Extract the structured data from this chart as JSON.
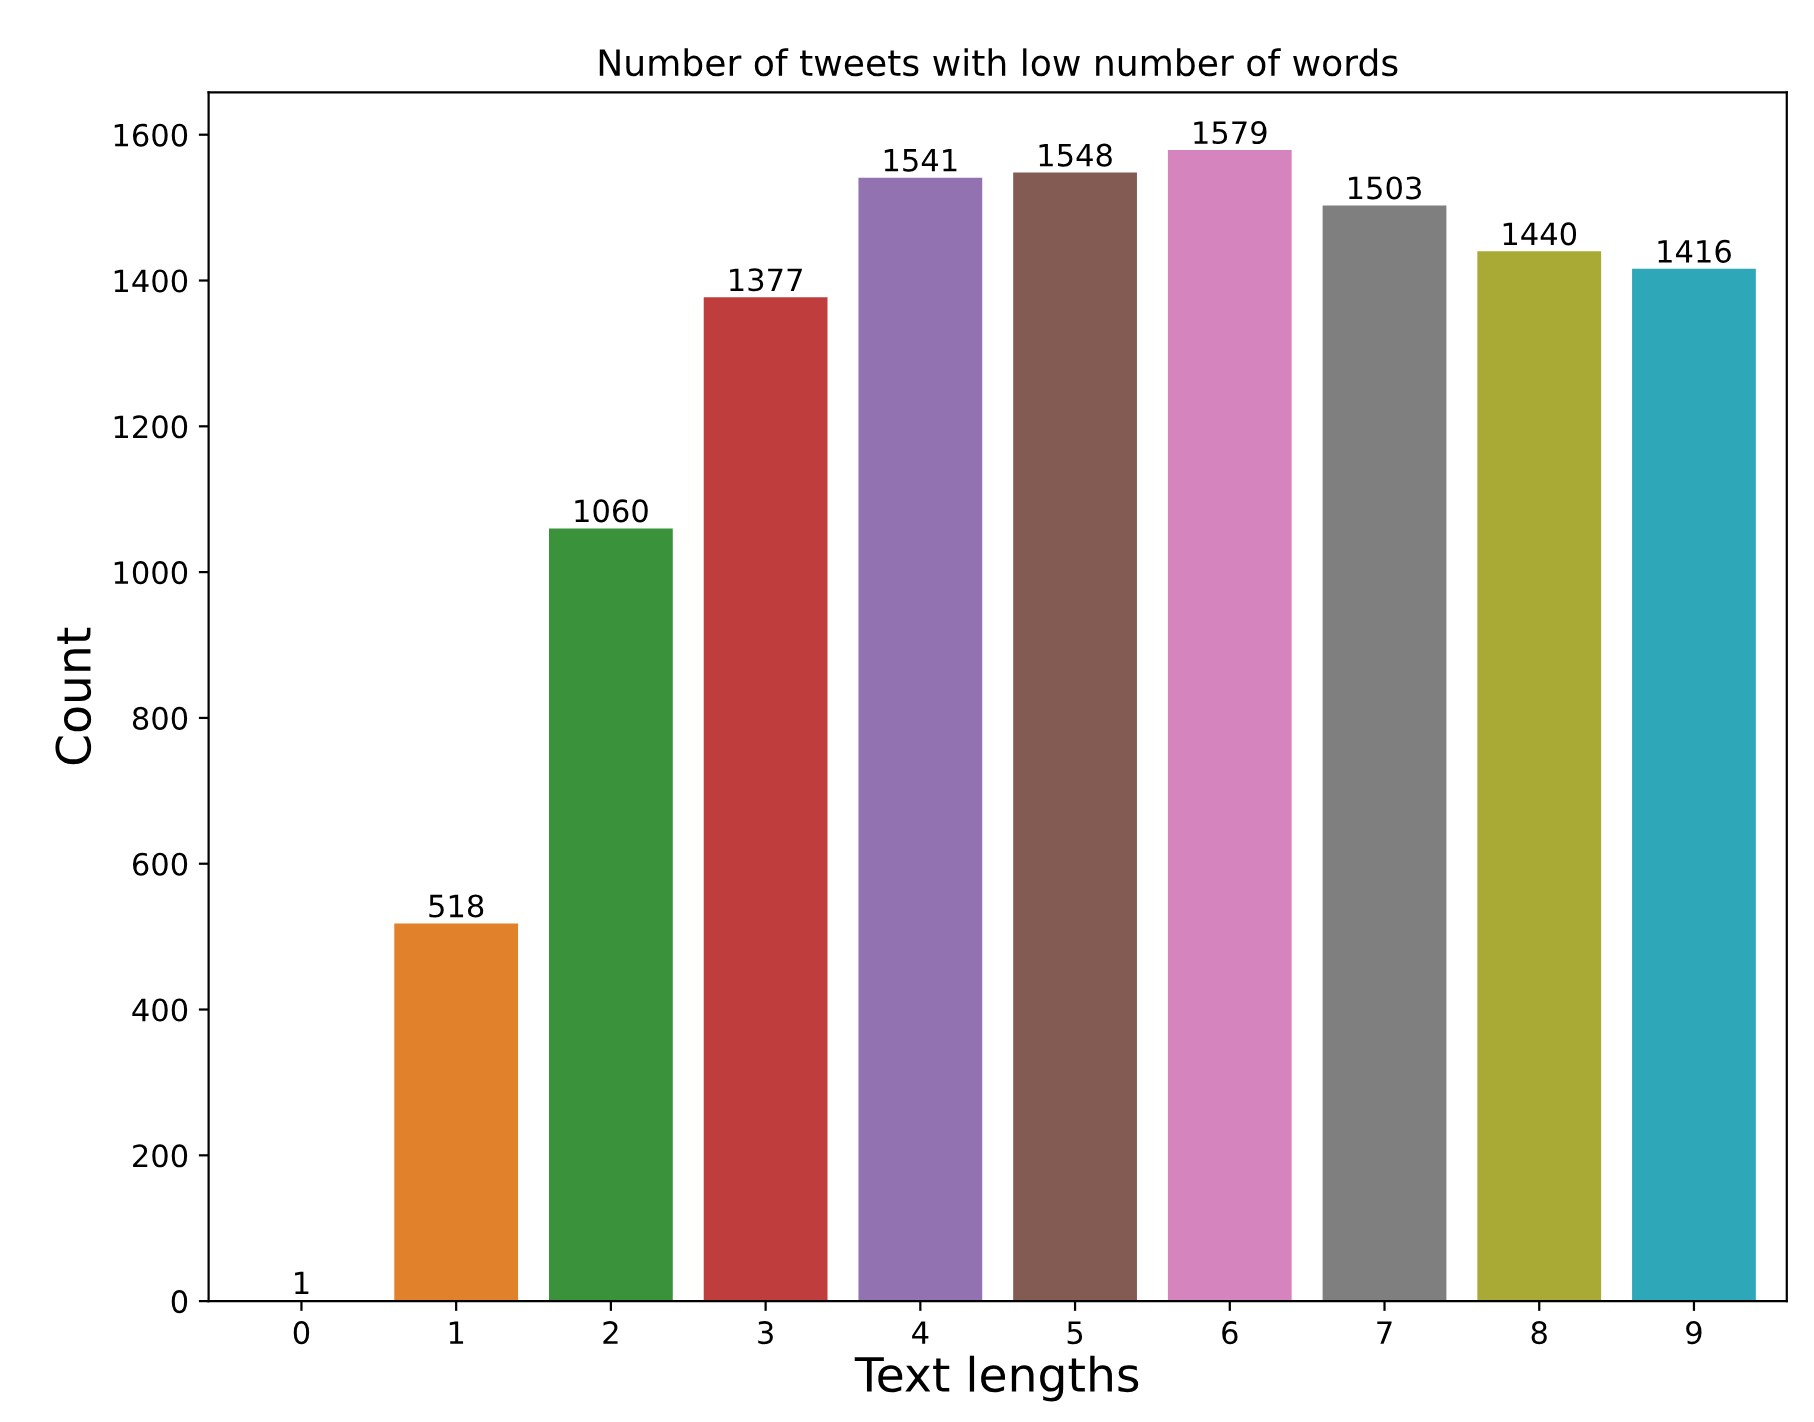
{
  "chart_data": {
    "type": "bar",
    "title": "Number of tweets with low number of words",
    "xlabel": "Text lengths",
    "ylabel": "Count",
    "categories": [
      "0",
      "1",
      "2",
      "3",
      "4",
      "5",
      "6",
      "7",
      "8",
      "9"
    ],
    "values": [
      1,
      518,
      1060,
      1377,
      1541,
      1548,
      1579,
      1503,
      1440,
      1416
    ],
    "colors": [
      "#3274a1",
      "#e1812c",
      "#3a923a",
      "#c03d3e",
      "#9372b2",
      "#845b53",
      "#d684bd",
      "#7f7f7f",
      "#a9aa35",
      "#2ea8b8"
    ],
    "ylim": [
      0,
      1658
    ],
    "yticks": [
      0,
      200,
      400,
      600,
      800,
      1000,
      1200,
      1400,
      1600
    ],
    "data_labels": true,
    "grid": false
  }
}
